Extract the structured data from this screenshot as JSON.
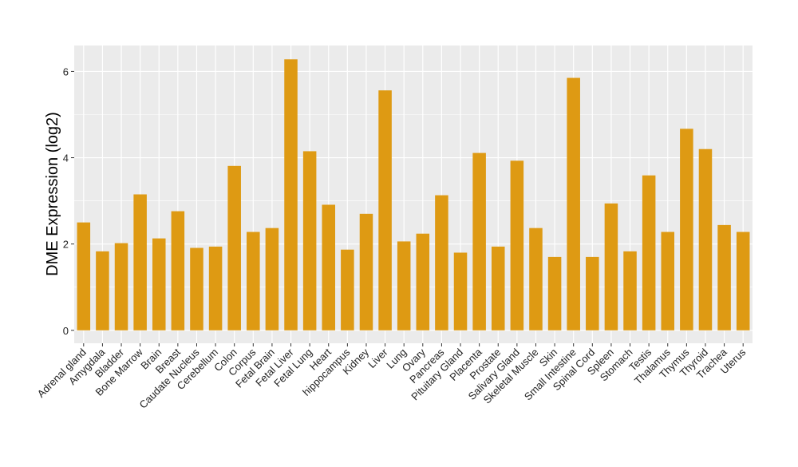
{
  "chart_data": {
    "type": "bar",
    "title": "",
    "xlabel": "",
    "ylabel": "DME Expression (log2)",
    "ylim": [
      -0.3,
      6.6
    ],
    "yticks": [
      0,
      2,
      4,
      6
    ],
    "grid": true,
    "bar_color": "#DE9A13",
    "panel_color": "#EBEBEB",
    "categories": [
      "Adrenal gland",
      "Amygdala",
      "Bladder",
      "Bone Marrow",
      "Brain",
      "Breast",
      "Caudate Nucleus",
      "Cerebellum",
      "Colon",
      "Corpus",
      "Fetal Brain",
      "Fetal Liver",
      "Fetal Lung",
      "Heart",
      "hippocampus",
      "Kidney",
      "Liver",
      "Lung",
      "Ovary",
      "Pancreas",
      "Pituitary Gland",
      "Placenta",
      "Prostate",
      "Salivary Gland",
      "Skeletal Muscle",
      "Skin",
      "Small Intestine",
      "Spinal Cord",
      "Spleen",
      "Stomach",
      "Testis",
      "Thalamus",
      "Thymus",
      "Thyroid",
      "Trachea",
      "Uterus"
    ],
    "values": [
      2.5,
      1.83,
      2.02,
      3.15,
      2.13,
      2.76,
      1.91,
      1.94,
      3.81,
      2.28,
      2.37,
      6.28,
      4.15,
      2.91,
      1.87,
      2.7,
      5.56,
      2.06,
      2.24,
      3.13,
      1.8,
      4.11,
      1.94,
      3.93,
      2.37,
      1.7,
      5.85,
      1.7,
      2.94,
      1.83,
      3.59,
      2.28,
      4.67,
      4.2,
      2.44,
      2.28
    ]
  }
}
